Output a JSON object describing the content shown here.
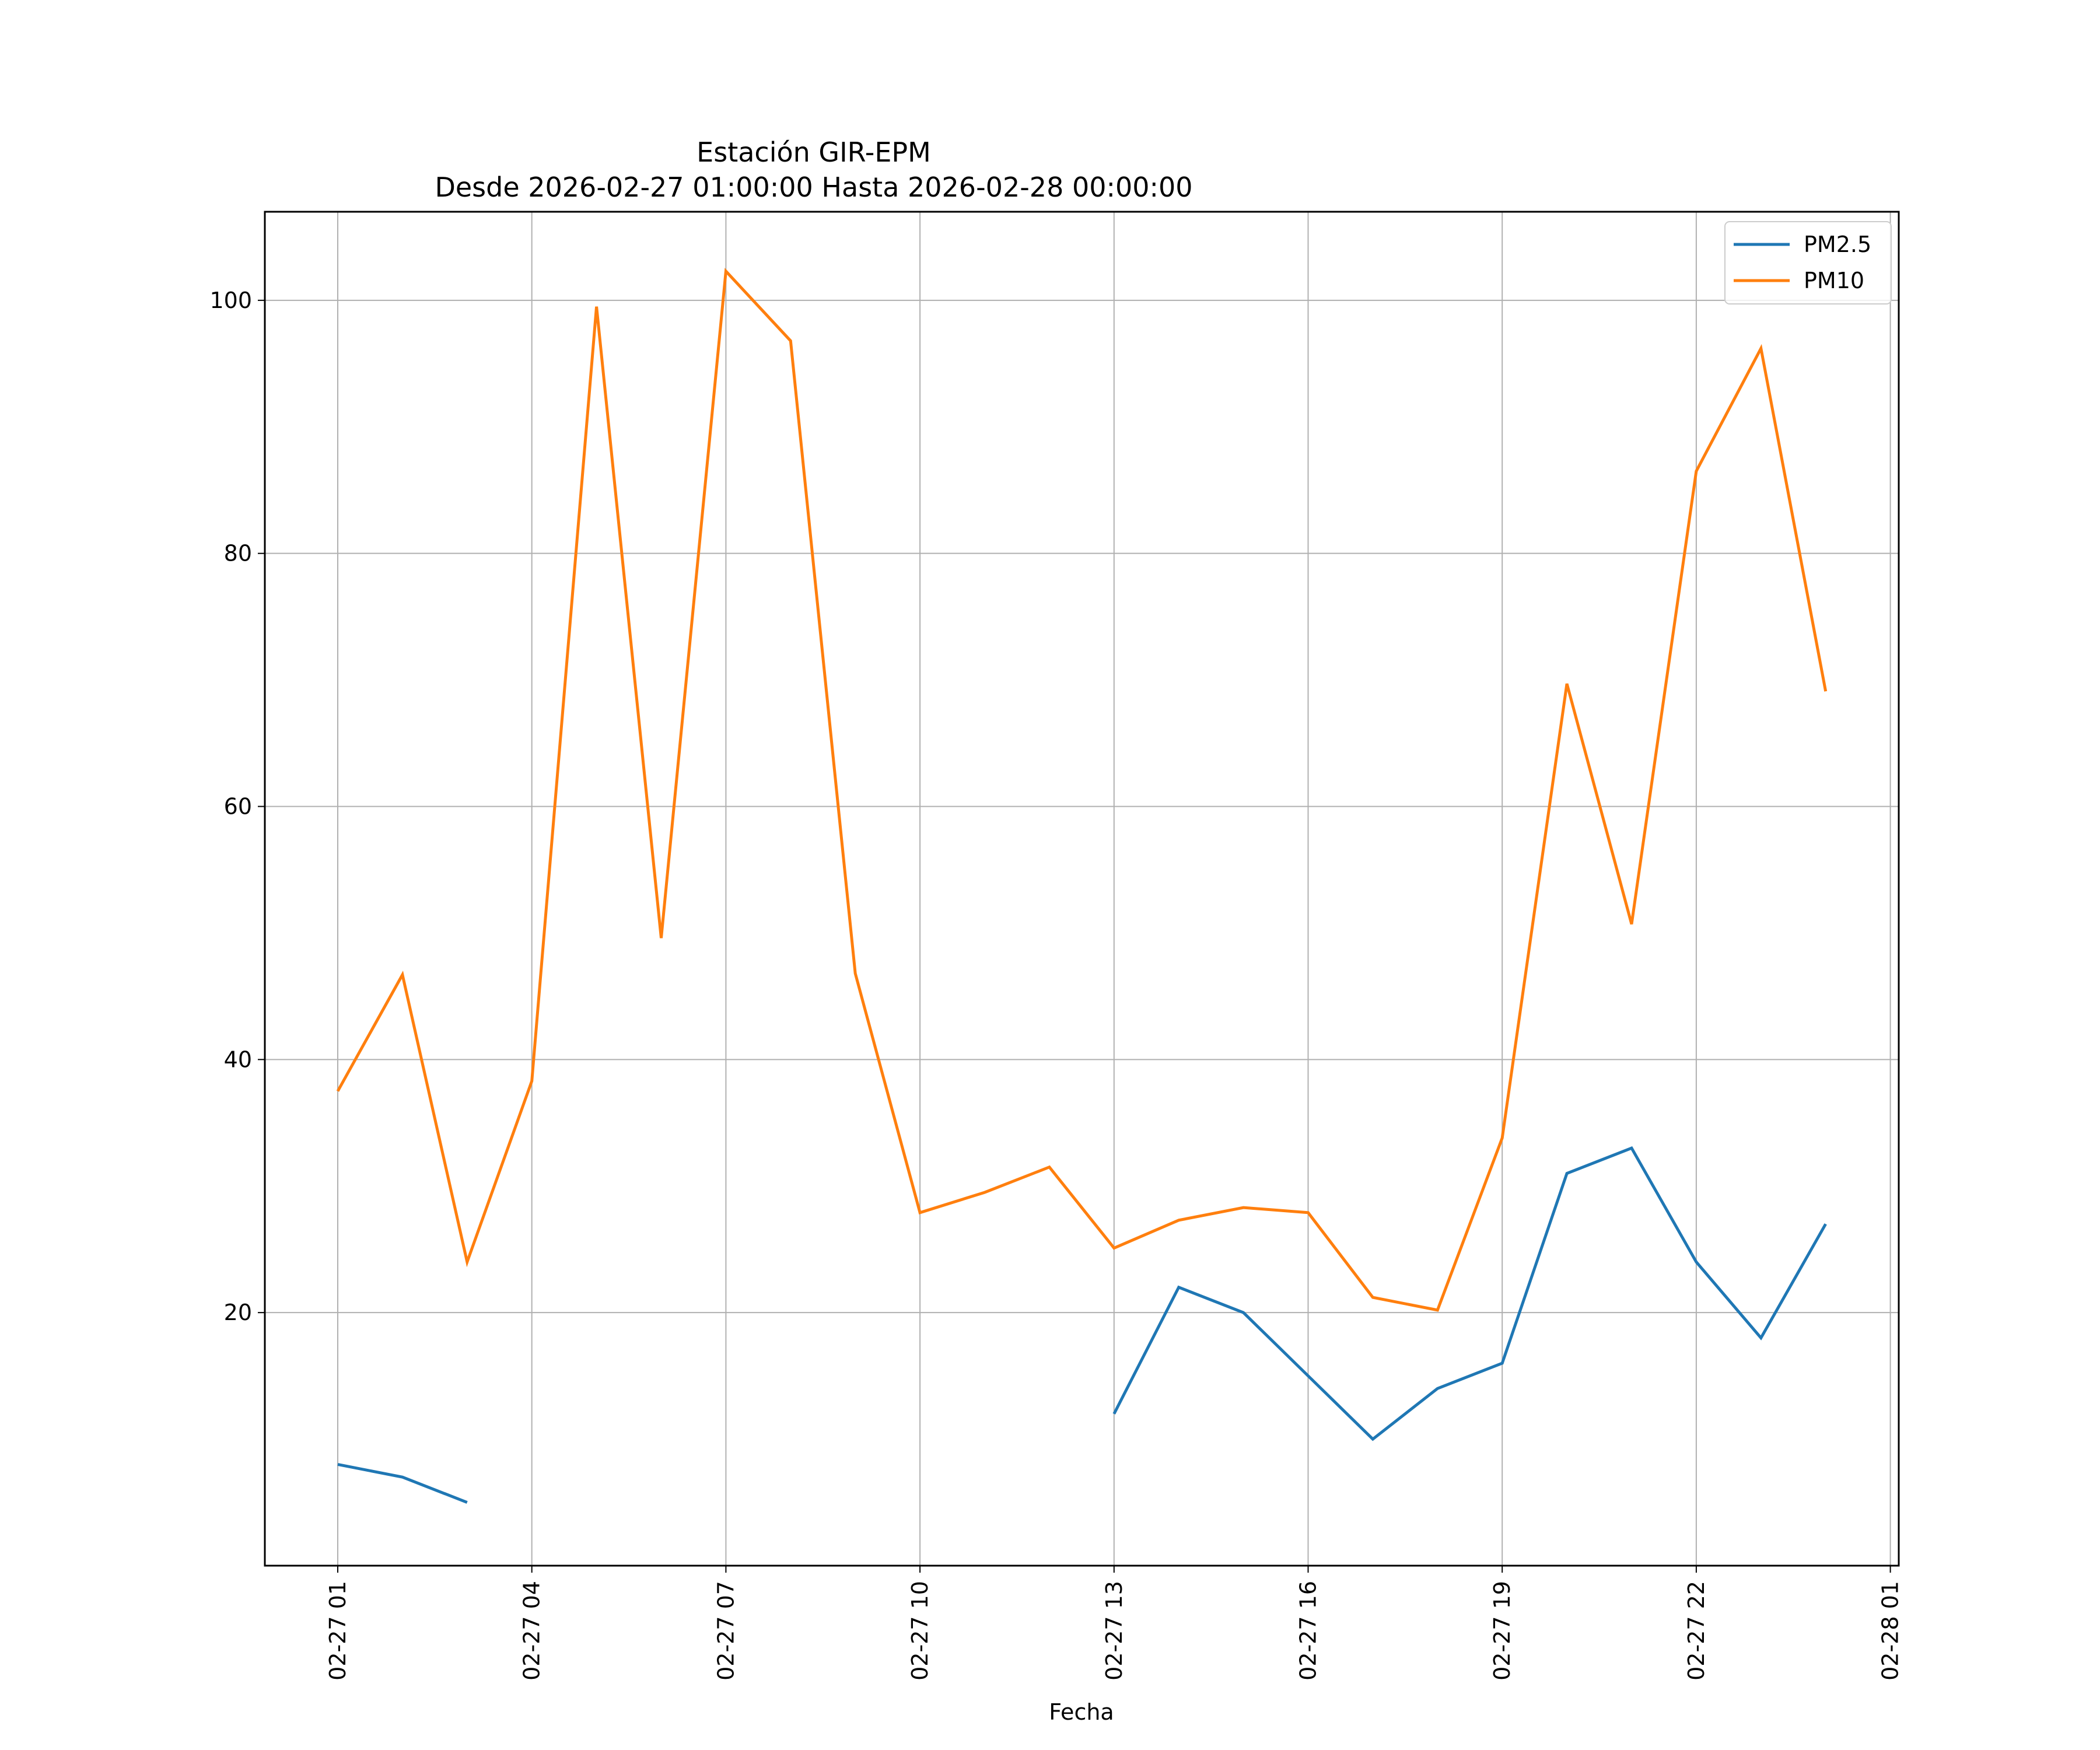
{
  "chart_data": {
    "type": "line",
    "title_line1": "Estación GIR-EPM",
    "title_line2": "Desde 2026-02-27 01:00:00 Hasta 2026-02-28 00:00:00",
    "xlabel": "Fecha",
    "ylabel": "",
    "x_hours": [
      "02-27 01",
      "02-27 02",
      "02-27 03",
      "02-27 04",
      "02-27 05",
      "02-27 06",
      "02-27 07",
      "02-27 08",
      "02-27 09",
      "02-27 10",
      "02-27 11",
      "02-27 12",
      "02-27 13",
      "02-27 14",
      "02-27 15",
      "02-27 16",
      "02-27 17",
      "02-27 18",
      "02-27 19",
      "02-27 20",
      "02-27 21",
      "02-27 22",
      "02-27 23",
      "02-28 00"
    ],
    "xticks": [
      "02-27 01",
      "02-27 04",
      "02-27 07",
      "02-27 10",
      "02-27 13",
      "02-27 16",
      "02-27 19",
      "02-27 22",
      "02-28 01"
    ],
    "xlim": [
      "02-27 00:00",
      "02-28 01:03"
    ],
    "yticks": [
      20,
      40,
      60,
      80,
      100
    ],
    "ylim": [
      0,
      107
    ],
    "grid": true,
    "legend_position": "top-right",
    "series": [
      {
        "name": "PM2.5",
        "color": "#1f77b4",
        "values": [
          8,
          7,
          5,
          null,
          null,
          null,
          null,
          null,
          null,
          null,
          null,
          null,
          12,
          22,
          20,
          15,
          10,
          14,
          16,
          31,
          33,
          24,
          18,
          27
        ]
      },
      {
        "name": "PM10",
        "color": "#ff7f0e",
        "values": [
          37.5,
          46.7,
          24,
          38.3,
          99.5,
          49.6,
          102.3,
          96.8,
          46.8,
          27.9,
          29.5,
          31.5,
          25.1,
          27.3,
          28.3,
          27.9,
          21.2,
          20.2,
          33.8,
          69.7,
          50.7,
          86.5,
          96.2,
          69.1
        ]
      }
    ]
  }
}
